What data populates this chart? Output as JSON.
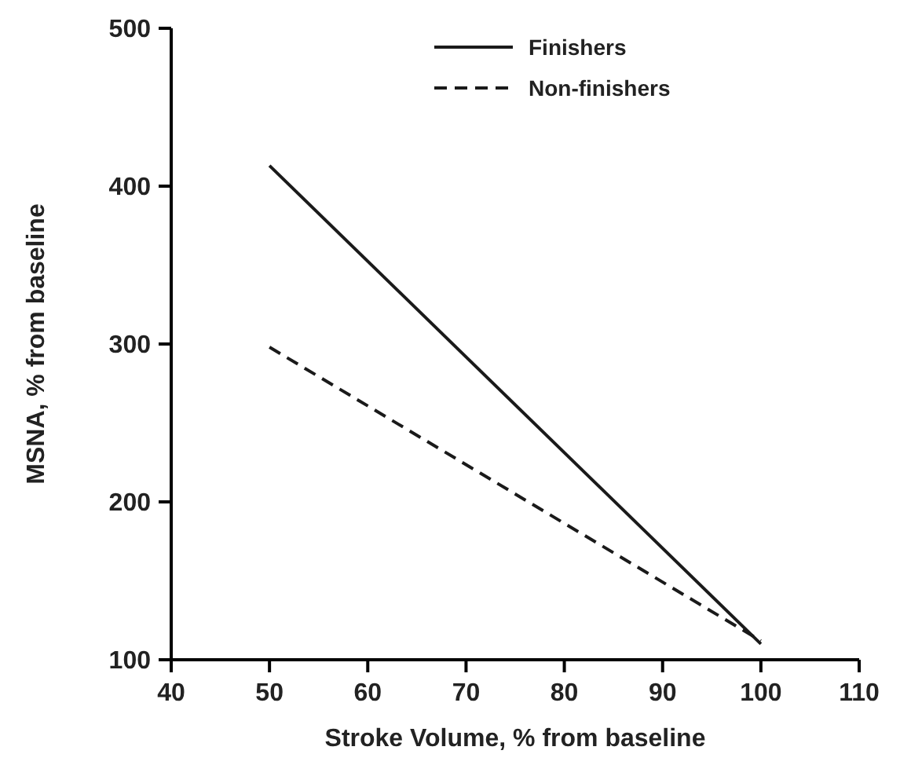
{
  "chart_data": {
    "type": "line",
    "xlabel": "Stroke Volume, % from baseline",
    "ylabel": "MSNA, % from baseline",
    "x": [
      50,
      100
    ],
    "series": [
      {
        "name": "Finishers",
        "color": "#1a1a1a",
        "values": [
          413,
          110
        ],
        "line_style": "solid"
      },
      {
        "name": "Non-finishers",
        "color": "#1a1a1a",
        "values": [
          298,
          112
        ],
        "line_style": "dashed"
      }
    ],
    "xlim": [
      40,
      110
    ],
    "xticks": [
      40,
      50,
      60,
      70,
      80,
      90,
      100,
      110
    ],
    "ylim": [
      100,
      500
    ],
    "yticks": [
      100,
      200,
      300,
      400,
      500
    ],
    "grid": false,
    "legend": "top",
    "marker": "none"
  }
}
